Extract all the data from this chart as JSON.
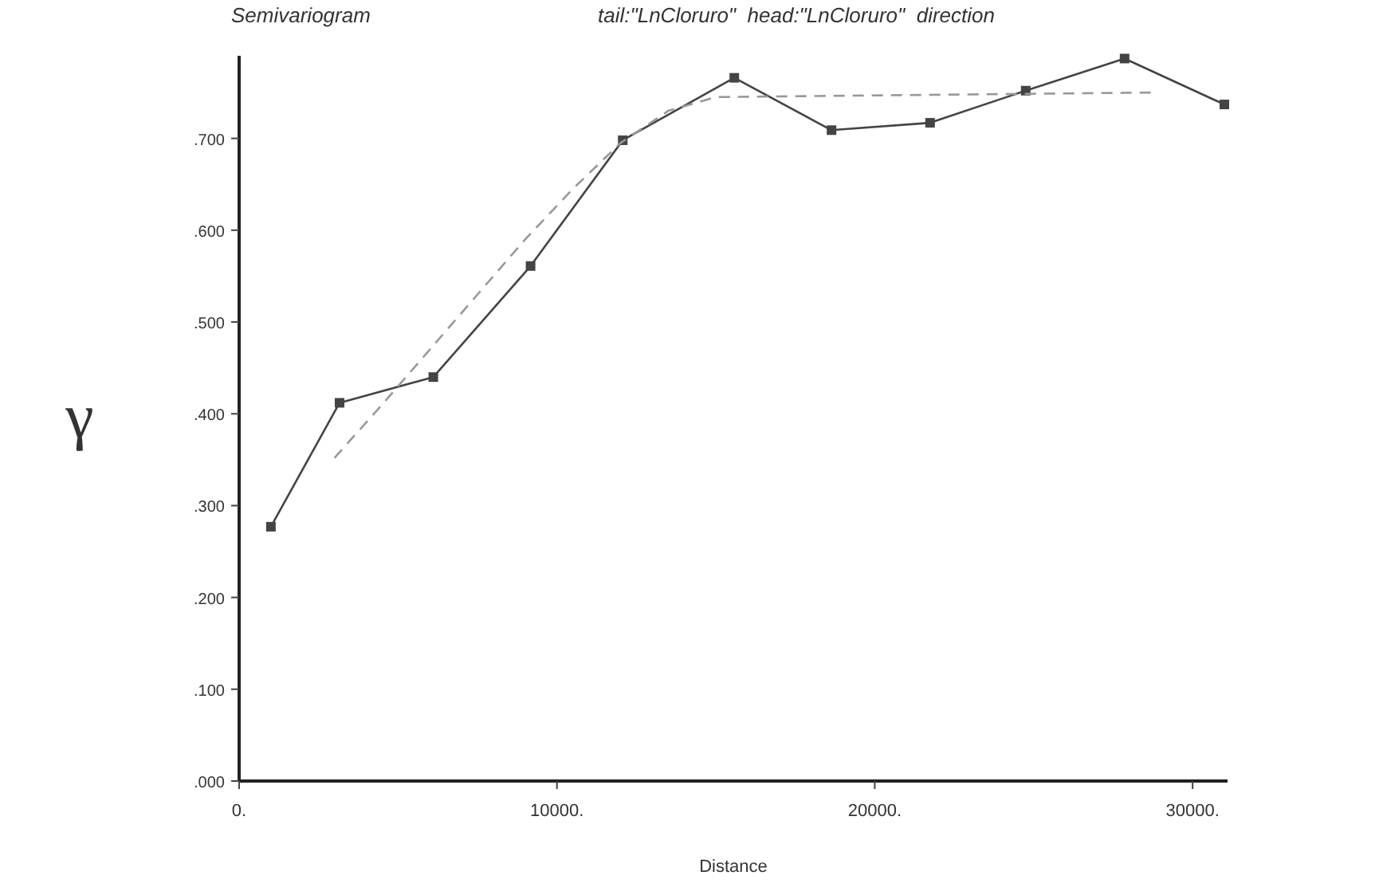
{
  "chart_data": {
    "type": "line",
    "title": "Semivariogram",
    "subtitle": "tail:\"LnCloruro\"  head:\"LnCloruro\"  direction",
    "xlabel": "Distance",
    "ylabel": "γ",
    "xlim": [
      0,
      31100
    ],
    "ylim": [
      0,
      0.79
    ],
    "xticks": [
      {
        "value": 0,
        "label": "0."
      },
      {
        "value": 10000,
        "label": "10000."
      },
      {
        "value": 20000,
        "label": "20000."
      },
      {
        "value": 30000,
        "label": "30000."
      }
    ],
    "yticks": [
      {
        "value": 0,
        "label": ".000"
      },
      {
        "value": 0.1,
        "label": ".100"
      },
      {
        "value": 0.2,
        "label": ".200"
      },
      {
        "value": 0.3,
        "label": ".300"
      },
      {
        "value": 0.4,
        "label": ".400"
      },
      {
        "value": 0.5,
        "label": ".500"
      },
      {
        "value": 0.6,
        "label": ".600"
      },
      {
        "value": 0.7,
        "label": ".700"
      }
    ],
    "grid": false,
    "series": [
      {
        "color": "#444444",
        "marker": "square",
        "line_style": "solid",
        "x": [
          1000,
          3160,
          6110,
          9170,
          12070,
          15580,
          18640,
          21740,
          24750,
          27860,
          31000
        ],
        "values": [
          0.277,
          0.412,
          0.44,
          0.561,
          0.698,
          0.766,
          0.709,
          0.717,
          0.752,
          0.787,
          0.737
        ]
      },
      {
        "color": "#999999",
        "marker": "none",
        "line_style": "dashed",
        "x": [
          3000,
          4500,
          6000,
          7500,
          9000,
          10500,
          12000,
          13500,
          15000,
          28800
        ],
        "values": [
          0.352,
          0.41,
          0.47,
          0.53,
          0.59,
          0.645,
          0.695,
          0.73,
          0.745,
          0.75
        ]
      }
    ]
  }
}
